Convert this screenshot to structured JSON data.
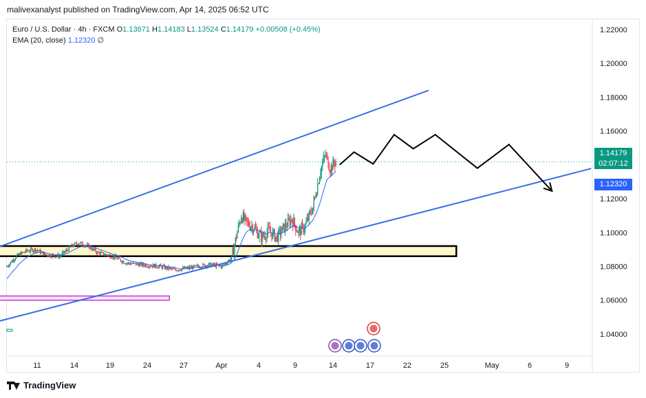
{
  "publisher": "malivexanalyst published on TradingView.com, Apr 14, 2025 06:52 UTC",
  "legend": {
    "symbol": "Euro / U.S. Dollar · 4h · FXCM",
    "open_label": "O",
    "open": "1.13671",
    "high_label": "H",
    "high": "1.14183",
    "low_label": "L",
    "low": "1.13524",
    "close_label": "C",
    "close": "1.14179",
    "change": "+0.00508 (+0.45%)",
    "ema_label": "EMA (20, close)",
    "ema_value": "1.12320",
    "ema_extra": "∅"
  },
  "price_tag": {
    "price": "1.14179",
    "countdown": "02:07:12",
    "color": "#089981"
  },
  "ema_tag": {
    "value": "1.12320",
    "color": "#2962ff"
  },
  "footer": {
    "brand": "TradingView"
  },
  "colors": {
    "up": "#089981",
    "down": "#f23645",
    "channel": "#3a6ee8",
    "ema": "#2962ff",
    "zone_fill": "#fff7cc",
    "zone_border": "#000000",
    "purple_zone": "#c837d4"
  },
  "chart_data": {
    "type": "candlestick",
    "symbol": "EURUSD",
    "timeframe": "4h",
    "y_axis": {
      "ticks": [
        "1.22000",
        "1.20000",
        "1.18000",
        "1.16000",
        "1.14000",
        "1.12000",
        "1.10000",
        "1.08000",
        "1.06000",
        "1.04000"
      ],
      "ylim": [
        1.027,
        1.226
      ]
    },
    "x_axis": {
      "ticks": [
        "11",
        "14",
        "19",
        "24",
        "27",
        "Apr",
        "4",
        "9",
        "14",
        "17",
        "22",
        "25",
        "May",
        "6",
        "9"
      ]
    },
    "price_path": [
      [
        0,
        1.08
      ],
      [
        10,
        1.086
      ],
      [
        20,
        1.089
      ],
      [
        30,
        1.09
      ],
      [
        40,
        1.087
      ],
      [
        55,
        1.086
      ],
      [
        68,
        1.092
      ],
      [
        75,
        1.094
      ],
      [
        85,
        1.092
      ],
      [
        95,
        1.088
      ],
      [
        110,
        1.086
      ],
      [
        125,
        1.082
      ],
      [
        140,
        1.081
      ],
      [
        160,
        1.08
      ],
      [
        175,
        1.078
      ],
      [
        190,
        1.079
      ],
      [
        200,
        1.08
      ],
      [
        212,
        1.081
      ],
      [
        225,
        1.08
      ],
      [
        235,
        1.085
      ],
      [
        240,
        1.098
      ],
      [
        245,
        1.11
      ],
      [
        250,
        1.106
      ],
      [
        258,
        1.103
      ],
      [
        266,
        1.097
      ],
      [
        274,
        1.101
      ],
      [
        282,
        1.097
      ],
      [
        290,
        1.103
      ],
      [
        298,
        1.108
      ],
      [
        305,
        1.1
      ],
      [
        312,
        1.104
      ],
      [
        320,
        1.115
      ],
      [
        328,
        1.137
      ],
      [
        333,
        1.146
      ],
      [
        338,
        1.138
      ],
      [
        344,
        1.142
      ]
    ],
    "last_close": 1.14179,
    "ema20_last": 1.1232,
    "channel_upper": [
      [
        -40,
        1.085
      ],
      [
        441,
        1.184
      ]
    ],
    "channel_lower": [
      [
        -40,
        1.043
      ],
      [
        530,
        1.126
      ]
    ],
    "projection_path": [
      [
        348,
        1.14
      ],
      [
        363,
        1.1475
      ],
      [
        383,
        1.1405
      ],
      [
        405,
        1.1578
      ],
      [
        425,
        1.1495
      ],
      [
        448,
        1.1578
      ],
      [
        492,
        1.138
      ],
      [
        525,
        1.152
      ],
      [
        570,
        1.1245
      ]
    ],
    "demand_zone": {
      "x_range": [
        -40,
        470
      ],
      "y_range": [
        1.086,
        1.092
      ]
    },
    "lower_zone": {
      "x_range": [
        -40,
        170
      ],
      "y_range": [
        1.06,
        1.0625
      ]
    }
  }
}
